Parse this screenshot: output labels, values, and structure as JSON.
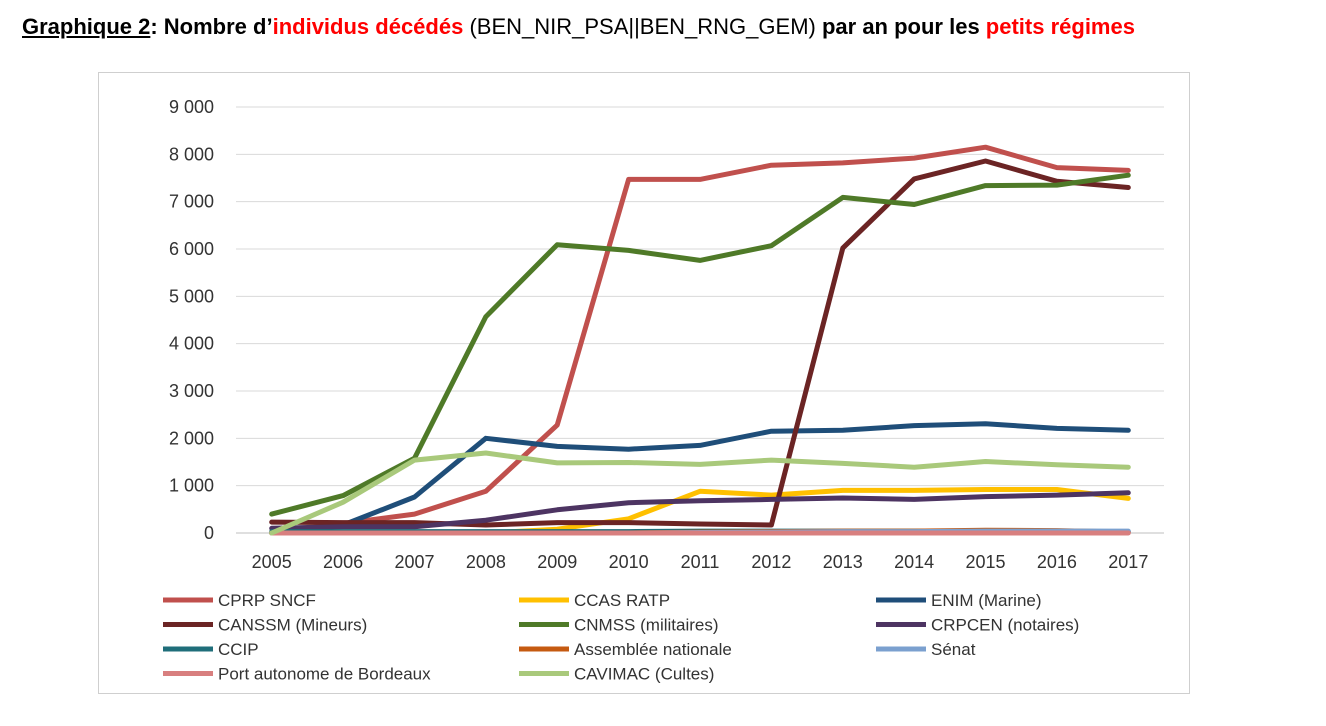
{
  "title": {
    "prefix": "Graphique 2",
    "part1": ": Nombre d’",
    "part2": "individus décédés",
    "part3": " (BEN_NIR_PSA||BEN_RNG_GEM) ",
    "part4": "par an pour les ",
    "part5": "petits régimes"
  },
  "chart_data": {
    "type": "line",
    "title": "Graphique 2: Nombre d’individus décédés (BEN_NIR_PSA||BEN_RNG_GEM) par an pour les petits régimes",
    "xlabel": "",
    "ylabel": "",
    "ylim": [
      0,
      9000
    ],
    "yticks": [
      "0",
      "1 000",
      "2 000",
      "3 000",
      "4 000",
      "5 000",
      "6 000",
      "7 000",
      "8 000",
      "9 000"
    ],
    "grid": true,
    "legend_position": "bottom",
    "categories": [
      "2005",
      "2006",
      "2007",
      "2008",
      "2009",
      "2010",
      "2011",
      "2012",
      "2013",
      "2014",
      "2015",
      "2016",
      "2017"
    ],
    "series": [
      {
        "name": "CPRP SNCF",
        "color": "#c0504d",
        "values": [
          0,
          200,
          400,
          880,
          2280,
          7470,
          7470,
          7770,
          7820,
          7920,
          8150,
          7720,
          7660
        ]
      },
      {
        "name": "CCAS RATP",
        "color": "#ffc000",
        "values": [
          0,
          0,
          0,
          0,
          80,
          300,
          880,
          800,
          900,
          900,
          920,
          920,
          730
        ]
      },
      {
        "name": "ENIM (Marine)",
        "color": "#1f4e79",
        "values": [
          0,
          170,
          760,
          2000,
          1830,
          1770,
          1850,
          2150,
          2170,
          2270,
          2310,
          2210,
          2170
        ]
      },
      {
        "name": "CANSSM (Mineurs)",
        "color": "#6b2424",
        "values": [
          230,
          220,
          220,
          170,
          220,
          220,
          190,
          170,
          6020,
          7480,
          7860,
          7430,
          7300
        ]
      },
      {
        "name": "CNMSS (militaires)",
        "color": "#4f7a28",
        "values": [
          400,
          790,
          1580,
          4570,
          6090,
          5970,
          5760,
          6070,
          7090,
          6940,
          7340,
          7350,
          7560
        ]
      },
      {
        "name": "CRPCEN (notaires)",
        "color": "#4d3462",
        "values": [
          100,
          130,
          130,
          270,
          490,
          640,
          680,
          710,
          740,
          710,
          770,
          800,
          850
        ]
      },
      {
        "name": "CCIP",
        "color": "#1f6e7a",
        "values": [
          30,
          30,
          30,
          30,
          30,
          30,
          40,
          40,
          40,
          40,
          40,
          40,
          30
        ]
      },
      {
        "name": "Assemblée nationale",
        "color": "#c55a11",
        "values": [
          0,
          0,
          0,
          0,
          0,
          0,
          20,
          30,
          40,
          40,
          60,
          50,
          20
        ]
      },
      {
        "name": "Sénat",
        "color": "#7ba0cf",
        "values": [
          0,
          0,
          0,
          0,
          0,
          0,
          10,
          20,
          30,
          30,
          40,
          40,
          40
        ]
      },
      {
        "name": "Port autonome de Bordeaux",
        "color": "#d87f7f",
        "values": [
          0,
          0,
          0,
          0,
          0,
          0,
          0,
          0,
          0,
          0,
          0,
          0,
          0
        ]
      },
      {
        "name": "CAVIMAC (Cultes)",
        "color": "#a9c97b",
        "values": [
          0,
          650,
          1540,
          1690,
          1480,
          1490,
          1450,
          1540,
          1470,
          1390,
          1510,
          1440,
          1390
        ]
      }
    ]
  }
}
